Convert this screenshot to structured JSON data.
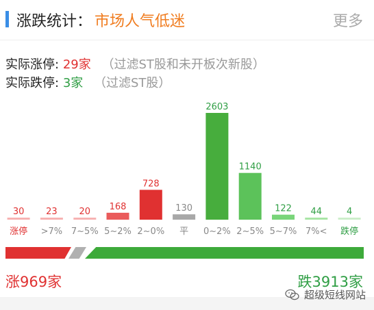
{
  "header": {
    "title": "涨跌统计：",
    "mood": "市场人气低迷",
    "more_label": "更多"
  },
  "limits": {
    "up_label": "实际涨停:",
    "up_count": "29家",
    "up_note": "（过滤ST股和未开板次新股）",
    "down_label": "实际跌停:",
    "down_count": "3家",
    "down_note": "（过滤ST股）"
  },
  "chart_data": {
    "type": "bar",
    "categories": [
      "涨停",
      ">7%",
      "7~5%",
      "5~2%",
      "2~0%",
      "平",
      "0~2%",
      "2~5%",
      "5~7%",
      "7%<",
      "跌停"
    ],
    "values": [
      30,
      23,
      20,
      168,
      728,
      130,
      2603,
      1140,
      122,
      44,
      4
    ],
    "value_labels": [
      "30",
      "23",
      "20",
      "168",
      "728",
      "130",
      "2603",
      "1140",
      "122",
      "44",
      "4"
    ],
    "bar_colors": [
      "#f7b2b2",
      "#f7b2b2",
      "#f7b2b2",
      "#ea5b5b",
      "#e03131",
      "#a8a8a8",
      "#47ad3d",
      "#5cc25a",
      "#79d57a",
      "#a9e5a6",
      "#cdeecb"
    ],
    "label_colors": [
      "#e03131",
      "#888888",
      "#888888",
      "#888888",
      "#888888",
      "#888888",
      "#888888",
      "#888888",
      "#888888",
      "#888888",
      "#2f9e44"
    ],
    "value_colors": [
      "#e03131",
      "#e03131",
      "#e03131",
      "#e03131",
      "#e03131",
      "#888888",
      "#2f9e44",
      "#2f9e44",
      "#2f9e44",
      "#2f9e44",
      "#2f9e44"
    ],
    "ylim": [
      0,
      2603
    ]
  },
  "ratio": {
    "up_share": 0.198,
    "down_share": 0.802
  },
  "footer": {
    "up_total": "涨969家",
    "down_total": "跌3913家"
  },
  "watermark": {
    "text": "超级短线网站"
  },
  "colors": {
    "accent": "#3a8ee6",
    "up": "#e03131",
    "down": "#2f9e44",
    "mood": "#f07c1f",
    "neutral": "#b0b0b0"
  }
}
